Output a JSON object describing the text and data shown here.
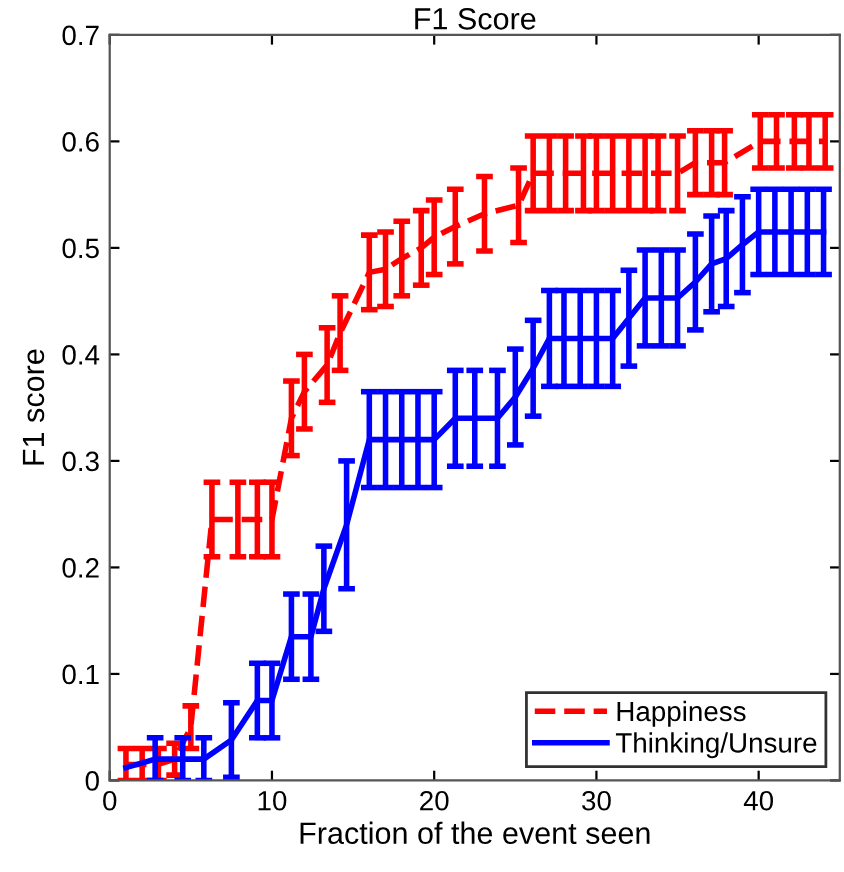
{
  "chart_data": {
    "type": "line",
    "title": "F1 Score",
    "xlabel": "Fraction of the event seen",
    "ylabel": "F1 score",
    "xlim": [
      0,
      45
    ],
    "xticks": [
      0,
      10,
      20,
      30,
      40
    ],
    "ylim": [
      0,
      0.7
    ],
    "yticks": [
      0,
      0.1,
      0.2,
      0.3,
      0.4,
      0.5,
      0.6,
      0.7
    ],
    "grid": false,
    "legend": "bottom right",
    "series": [
      {
        "name": "Happiness",
        "color": "#ff0000",
        "line_style": "dashed",
        "x": [
          1,
          2,
          3,
          4,
          5,
          6.3,
          7.9,
          9.1,
          10,
          11.2,
          12,
          13.4,
          14.2,
          16,
          17,
          18,
          19.2,
          20,
          21.3,
          23.1,
          25.2,
          26.1,
          27.1,
          28.1,
          29.2,
          30,
          31,
          32,
          33,
          33.8,
          35,
          36.1,
          37.1,
          37.9,
          40.1,
          41.1,
          42.2,
          43.1,
          44.1
        ],
        "values": [
          0.015,
          0.015,
          0.015,
          0.02,
          0.05,
          0.245,
          0.245,
          0.245,
          0.245,
          0.34,
          0.365,
          0.39,
          0.42,
          0.477,
          0.48,
          0.49,
          0.5,
          0.51,
          0.52,
          0.532,
          0.54,
          0.57,
          0.57,
          0.57,
          0.57,
          0.57,
          0.57,
          0.57,
          0.57,
          0.57,
          0.57,
          0.58,
          0.58,
          0.58,
          0.6,
          0.6,
          0.6,
          0.6,
          0.6
        ],
        "errors": [
          0.015,
          0.015,
          0.015,
          0.015,
          0.02,
          0.035,
          0.035,
          0.035,
          0.035,
          0.035,
          0.035,
          0.035,
          0.035,
          0.035,
          0.035,
          0.035,
          0.035,
          0.035,
          0.035,
          0.035,
          0.035,
          0.035,
          0.035,
          0.035,
          0.035,
          0.035,
          0.035,
          0.035,
          0.035,
          0.035,
          0.035,
          0.03,
          0.03,
          0.03,
          0.025,
          0.025,
          0.025,
          0.025,
          0.025
        ]
      },
      {
        "name": "Thinking/Unsure",
        "color": "#0000ff",
        "line_style": "solid",
        "x": [
          1,
          2.8,
          4.5,
          5.8,
          7.5,
          9.1,
          10,
          11.2,
          12.4,
          13.2,
          14.6,
          16,
          17,
          18,
          19,
          20,
          21.3,
          22.5,
          23.9,
          25,
          26.1,
          27.1,
          28,
          29,
          30,
          31,
          32,
          33,
          34,
          35,
          36.1,
          37.1,
          38,
          39,
          40,
          41,
          42,
          43,
          44
        ],
        "values": [
          0.012,
          0.02,
          0.02,
          0.02,
          0.038,
          0.075,
          0.075,
          0.135,
          0.135,
          0.18,
          0.24,
          0.32,
          0.32,
          0.32,
          0.32,
          0.32,
          0.34,
          0.34,
          0.34,
          0.36,
          0.387,
          0.415,
          0.415,
          0.415,
          0.415,
          0.415,
          0.434,
          0.453,
          0.453,
          0.453,
          0.468,
          0.485,
          0.49,
          0.503,
          0.515,
          0.515,
          0.515,
          0.515,
          0.515
        ],
        "errors": [
          null,
          0.02,
          0.02,
          0.02,
          0.035,
          0.035,
          0.035,
          0.04,
          0.04,
          0.04,
          0.06,
          0.045,
          0.045,
          0.045,
          0.045,
          0.045,
          0.045,
          0.045,
          0.045,
          0.045,
          0.045,
          0.045,
          0.045,
          0.045,
          0.045,
          0.045,
          0.045,
          0.045,
          0.045,
          0.045,
          0.045,
          0.045,
          0.045,
          0.045,
          0.04,
          0.04,
          0.04,
          0.04,
          0.04
        ]
      }
    ]
  }
}
